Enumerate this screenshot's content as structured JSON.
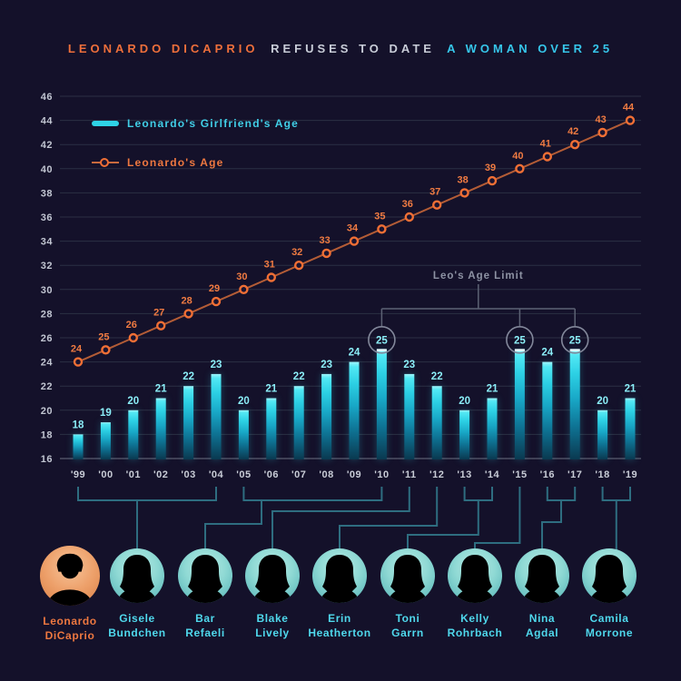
{
  "title": {
    "part1": "LEONARDO DICAPRIO",
    "part2": "REFUSES TO DATE",
    "part3": "A WOMAN OVER 25"
  },
  "legend": {
    "girlfriend_label": "Leonardo's Girlfriend's Age",
    "leo_label": "Leonardo's Age"
  },
  "annotation": {
    "label": "Leo's Age Limit",
    "circled_years": [
      "'10",
      "'15",
      "'17"
    ],
    "circled_value": 25
  },
  "axis": {
    "y_ticks": [
      46,
      44,
      42,
      40,
      38,
      36,
      34,
      32,
      30,
      28,
      26,
      24,
      22,
      20,
      18,
      16
    ]
  },
  "chart_data": {
    "type": "bar+line",
    "categories": [
      "'99",
      "'00",
      "'01",
      "'02",
      "'03",
      "'04",
      "'05",
      "'06",
      "'07",
      "'08",
      "'09",
      "'10",
      "'11",
      "'12",
      "'13",
      "'14",
      "'15",
      "'16",
      "'17",
      "'18",
      "'19"
    ],
    "series": [
      {
        "name": "Leonardo's Girlfriend's Age",
        "type": "bar",
        "color": "#35dbee",
        "values": [
          18,
          19,
          20,
          21,
          22,
          23,
          20,
          21,
          22,
          23,
          24,
          25,
          23,
          22,
          20,
          21,
          25,
          24,
          25,
          20,
          21
        ]
      },
      {
        "name": "Leonardo's Age",
        "type": "line",
        "color": "#ee7040",
        "values": [
          24,
          25,
          26,
          27,
          28,
          29,
          30,
          31,
          32,
          33,
          34,
          35,
          36,
          37,
          38,
          39,
          40,
          41,
          42,
          43,
          44
        ]
      }
    ],
    "title": "Leonardo DiCaprio refuses to date a woman over 25",
    "xlabel": "",
    "ylabel": "",
    "ylim": [
      16,
      46
    ],
    "grid": true,
    "legend_position": "top-left"
  },
  "people": [
    {
      "line1": "Leonardo",
      "line2": "DiCaprio",
      "role": "leo"
    },
    {
      "line1": "Gisele",
      "line2": "Bundchen",
      "role": "girlfriend"
    },
    {
      "line1": "Bar",
      "line2": "Refaeli",
      "role": "girlfriend"
    },
    {
      "line1": "Blake",
      "line2": "Lively",
      "role": "girlfriend"
    },
    {
      "line1": "Erin",
      "line2": "Heatherton",
      "role": "girlfriend"
    },
    {
      "line1": "Toni",
      "line2": "Garrn",
      "role": "girlfriend"
    },
    {
      "line1": "Kelly",
      "line2": "Rohrbach",
      "role": "girlfriend"
    },
    {
      "line1": "Nina",
      "line2": "Agdal",
      "role": "girlfriend"
    },
    {
      "line1": "Camila",
      "line2": "Morrone",
      "role": "girlfriend"
    }
  ],
  "connections": [
    {
      "person": "Gisele Bundchen",
      "from_year": "'99",
      "to_year": "'04"
    },
    {
      "person": "Bar Refaeli",
      "from_year": "'05",
      "to_year": "'10"
    },
    {
      "person": "Blake Lively",
      "from_year": "'11",
      "to_year": "'11"
    },
    {
      "person": "Erin Heatherton",
      "from_year": "'12",
      "to_year": "'12"
    },
    {
      "person": "Toni Garrn",
      "from_year": "'13",
      "to_year": "'14"
    },
    {
      "person": "Kelly Rohrbach",
      "from_year": "'15",
      "to_year": "'15"
    },
    {
      "person": "Nina Agdal",
      "from_year": "'16",
      "to_year": "'17"
    },
    {
      "person": "Camila Morrone",
      "from_year": "'18",
      "to_year": "'19"
    }
  ],
  "colors": {
    "background": "#14112a",
    "bar_top": "#52e8f4",
    "bar_bottom": "#0a3950",
    "line_orange": "#ee7040",
    "title_orange": "#ee6f3b",
    "title_cyan": "#36c6ea",
    "connector_teal": "#2e6d80",
    "annotation_gray": "#8d92a3"
  }
}
